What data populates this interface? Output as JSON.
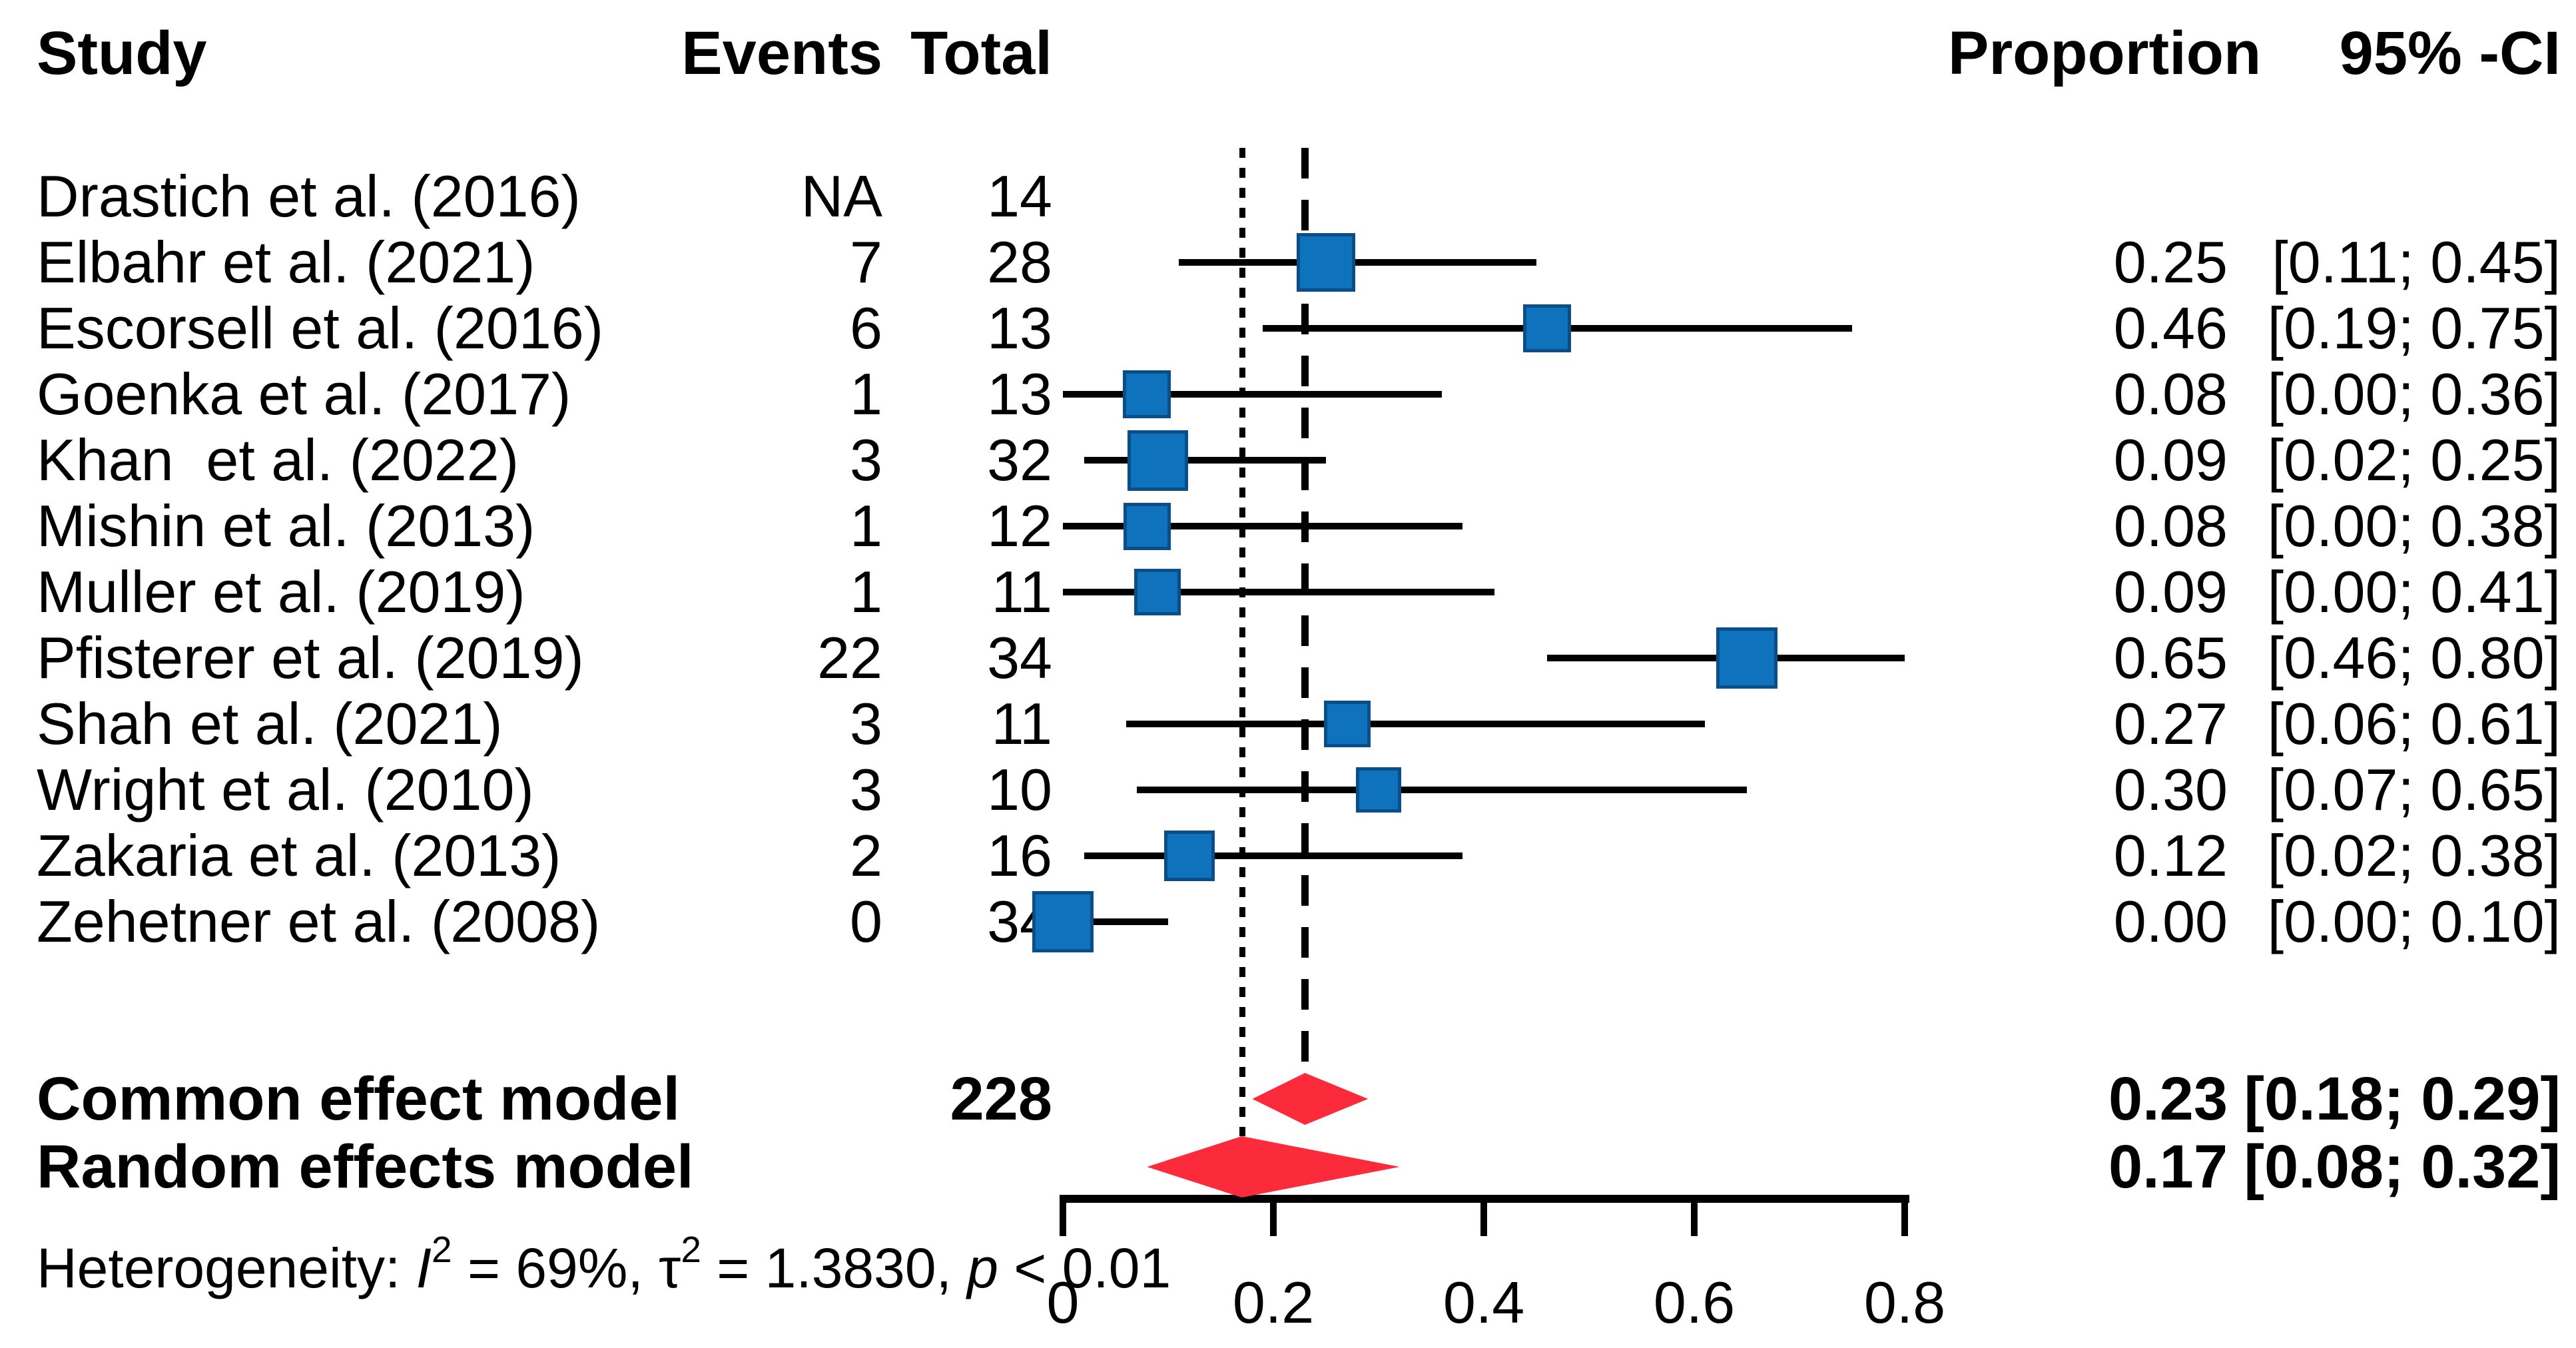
{
  "columns": {
    "study": "Study",
    "events": "Events",
    "total": "Total",
    "proportion": "Proportion",
    "ci": "95% -CI"
  },
  "heterogeneity": {
    "prefix": "Heterogeneity: ",
    "i_sym": "I",
    "i_val": " = 69%, ",
    "tau_sym": "τ",
    "tau_val": " = 1.3830, ",
    "p_sym": "p",
    "p_val": " < 0.01"
  },
  "chart_data": {
    "type": "forest",
    "title": "",
    "xlabel": "",
    "axis": {
      "min": 0,
      "max": 0.8,
      "tick_values": [
        0,
        0.2,
        0.4,
        0.6,
        0.8
      ],
      "tick_labels": [
        "0",
        "0.2",
        "0.4",
        "0.6",
        "0.8"
      ]
    },
    "studies": [
      {
        "label": "Drastich et al. (2016)",
        "events": "NA",
        "total": 14,
        "proportion": "",
        "ci_text": "",
        "est": null,
        "lo": null,
        "hi": null
      },
      {
        "label": "Elbahr et al. (2021)",
        "events": "7",
        "total": 28,
        "proportion": "0.25",
        "ci_text": "[0.11; 0.45]",
        "est": 0.25,
        "lo": 0.11,
        "hi": 0.45
      },
      {
        "label": "Escorsell et al. (2016)",
        "events": "6",
        "total": 13,
        "proportion": "0.46",
        "ci_text": "[0.19; 0.75]",
        "est": 0.46,
        "lo": 0.19,
        "hi": 0.75
      },
      {
        "label": "Goenka et al. (2017)",
        "events": "1",
        "total": 13,
        "proportion": "0.08",
        "ci_text": "[0.00; 0.36]",
        "est": 0.08,
        "lo": 0.0,
        "hi": 0.36
      },
      {
        "label": "Khan  et al. (2022)",
        "events": "3",
        "total": 32,
        "proportion": "0.09",
        "ci_text": "[0.02; 0.25]",
        "est": 0.09,
        "lo": 0.02,
        "hi": 0.25
      },
      {
        "label": "Mishin et al. (2013)",
        "events": "1",
        "total": 12,
        "proportion": "0.08",
        "ci_text": "[0.00; 0.38]",
        "est": 0.08,
        "lo": 0.0,
        "hi": 0.38
      },
      {
        "label": "Muller et al. (2019)",
        "events": "1",
        "total": 11,
        "proportion": "0.09",
        "ci_text": "[0.00; 0.41]",
        "est": 0.09,
        "lo": 0.0,
        "hi": 0.41
      },
      {
        "label": "Pfisterer et al. (2019)",
        "events": "22",
        "total": 34,
        "proportion": "0.65",
        "ci_text": "[0.46; 0.80]",
        "est": 0.65,
        "lo": 0.46,
        "hi": 0.8
      },
      {
        "label": "Shah et al. (2021)",
        "events": "3",
        "total": 11,
        "proportion": "0.27",
        "ci_text": "[0.06; 0.61]",
        "est": 0.27,
        "lo": 0.06,
        "hi": 0.61
      },
      {
        "label": "Wright et al. (2010)",
        "events": "3",
        "total": 10,
        "proportion": "0.30",
        "ci_text": "[0.07; 0.65]",
        "est": 0.3,
        "lo": 0.07,
        "hi": 0.65
      },
      {
        "label": "Zakaria et al. (2013)",
        "events": "2",
        "total": 16,
        "proportion": "0.12",
        "ci_text": "[0.02; 0.38]",
        "est": 0.12,
        "lo": 0.02,
        "hi": 0.38
      },
      {
        "label": "Zehetner et al. (2008)",
        "events": "0",
        "total": 34,
        "proportion": "0.00",
        "ci_text": "[0.00; 0.10]",
        "est": 0.0,
        "lo": 0.0,
        "hi": 0.1
      }
    ],
    "summaries": [
      {
        "label": "Common effect model",
        "total": "228",
        "proportion": "0.23",
        "ci_text": "[0.18; 0.29]",
        "est": 0.23,
        "lo": 0.18,
        "hi": 0.29,
        "model": "common"
      },
      {
        "label": "Random effects model",
        "total": "",
        "proportion": "0.17",
        "ci_text": "[0.08; 0.32]",
        "est": 0.17,
        "lo": 0.08,
        "hi": 0.32,
        "model": "random"
      }
    ],
    "reference_lines": [
      {
        "value": 0.23,
        "style": "dashed",
        "meaning": "common effect estimate"
      },
      {
        "value": 0.17,
        "style": "dotted",
        "meaning": "random effects estimate"
      }
    ],
    "heterogeneity_text": "Heterogeneity: I² = 69%, τ² = 1.3830, p < 0.01",
    "colors": {
      "square": "#0f72bd",
      "square_border": "#0a4d87",
      "diamond": "#fb2b3c",
      "line": "#000000"
    }
  }
}
